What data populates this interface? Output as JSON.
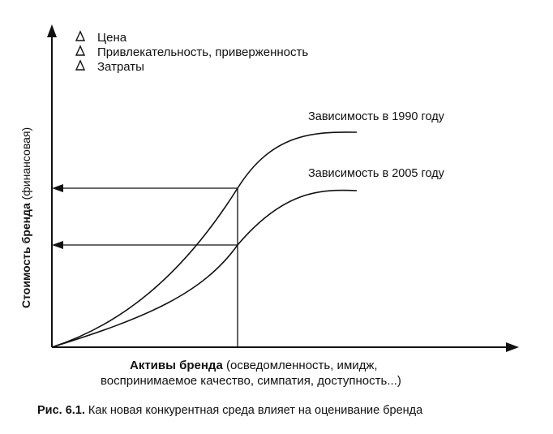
{
  "legend": {
    "items": [
      "Цена",
      "Привлекательность, приверженность",
      "Затраты"
    ]
  },
  "curves": {
    "c1990": "Зависимость в 1990 году",
    "c2005": "Зависимость в 2005 году"
  },
  "axes": {
    "y_bold": "Стоимость бренда",
    "y_normal": " (финансовая)",
    "x_bold": "Активы бренда",
    "x_normal_1": " (осведомленность, имидж,",
    "x_line2": "воспринимаемое качество, симпатия, доступность...)"
  },
  "caption": {
    "prefix": "Рис. 6.1.",
    "text": " Как новая конкурентная среда влияет на оценивание бренда"
  },
  "colors": {
    "ink": "#111111",
    "background": "#ffffff"
  },
  "icons": [
    "triangle-icon",
    "triangle-icon",
    "triangle-icon",
    "arrow-up-icon",
    "arrow-right-icon",
    "arrow-left-icon",
    "arrow-left-icon"
  ]
}
